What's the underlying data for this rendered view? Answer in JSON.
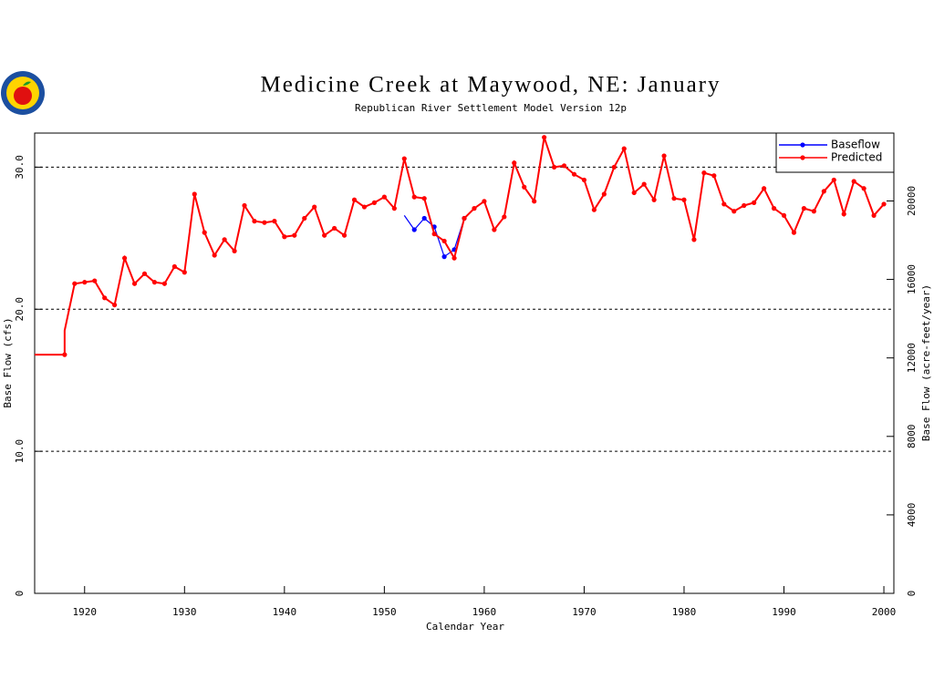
{
  "chart_data": {
    "type": "line",
    "title": "Medicine Creek at Maywood, NE: January",
    "subtitle": "Republican River Settlement Model Version 12p",
    "x_label": "Calendar Year",
    "y_label": "Base Flow (cfs)",
    "y2_label": "Base Flow (acre-feet/year)",
    "xlim": [
      1915,
      2001
    ],
    "xticks": [
      1920,
      1930,
      1940,
      1950,
      1960,
      1970,
      1980,
      1990,
      2000
    ],
    "ylim": [
      0,
      32.4
    ],
    "yticks": [
      0,
      {
        "value": 10,
        "label": "10.0"
      },
      {
        "value": 20,
        "label": "20.0"
      },
      {
        "value": 30,
        "label": "30.0"
      }
    ],
    "y2lim": [
      0,
      23460
    ],
    "y2ticks": [
      0,
      4000,
      8000,
      12000,
      16000,
      20000
    ],
    "grid": true,
    "legend": "upper right",
    "series": [
      {
        "name": "Baseflow",
        "color": "#0000ff",
        "x": [
          1952,
          1953,
          1954,
          1955,
          1956,
          1957,
          1958
        ],
        "values": [
          26.6,
          25.6,
          26.4,
          25.8,
          23.7,
          24.2,
          26.4
        ]
      },
      {
        "name": "Predicted",
        "color": "#ff0000",
        "x": [
          1915,
          1918,
          1918,
          1919,
          1920,
          1921,
          1922,
          1923,
          1924,
          1925,
          1926,
          1927,
          1928,
          1929,
          1930,
          1931,
          1932,
          1933,
          1934,
          1935,
          1936,
          1937,
          1938,
          1939,
          1940,
          1941,
          1942,
          1943,
          1944,
          1945,
          1946,
          1947,
          1948,
          1949,
          1950,
          1951,
          1952,
          1953,
          1954,
          1955,
          1956,
          1957,
          1958,
          1959,
          1960,
          1961,
          1962,
          1963,
          1964,
          1965,
          1966,
          1967,
          1968,
          1969,
          1970,
          1971,
          1972,
          1973,
          1974,
          1975,
          1976,
          1977,
          1978,
          1979,
          1980,
          1981,
          1982,
          1983,
          1984,
          1985,
          1986,
          1987,
          1988,
          1989,
          1990,
          1991,
          1992,
          1993,
          1994,
          1995,
          1996,
          1997,
          1998,
          1999,
          2000
        ],
        "values": [
          16.8,
          16.8,
          18.5,
          21.8,
          21.9,
          22.0,
          20.8,
          20.3,
          23.6,
          21.8,
          22.5,
          21.9,
          21.8,
          23.0,
          22.6,
          28.1,
          25.4,
          23.8,
          24.9,
          24.1,
          27.3,
          26.2,
          26.1,
          26.2,
          25.1,
          25.2,
          26.4,
          27.2,
          25.2,
          25.7,
          25.2,
          27.7,
          27.2,
          27.5,
          27.9,
          27.1,
          30.6,
          27.9,
          27.8,
          25.3,
          24.8,
          23.6,
          26.4,
          27.1,
          27.6,
          25.6,
          26.5,
          30.3,
          28.6,
          27.6,
          32.1,
          30.0,
          30.1,
          29.5,
          29.1,
          27.0,
          28.1,
          30.0,
          31.3,
          28.2,
          28.8,
          27.7,
          30.8,
          27.8,
          27.7,
          24.9,
          29.6,
          29.4,
          27.4,
          26.9,
          27.3,
          27.5,
          28.5,
          27.1,
          26.6,
          25.4,
          27.1,
          26.9,
          28.3,
          29.1,
          26.7,
          29.0,
          28.5,
          26.6,
          27.4
        ]
      }
    ]
  }
}
